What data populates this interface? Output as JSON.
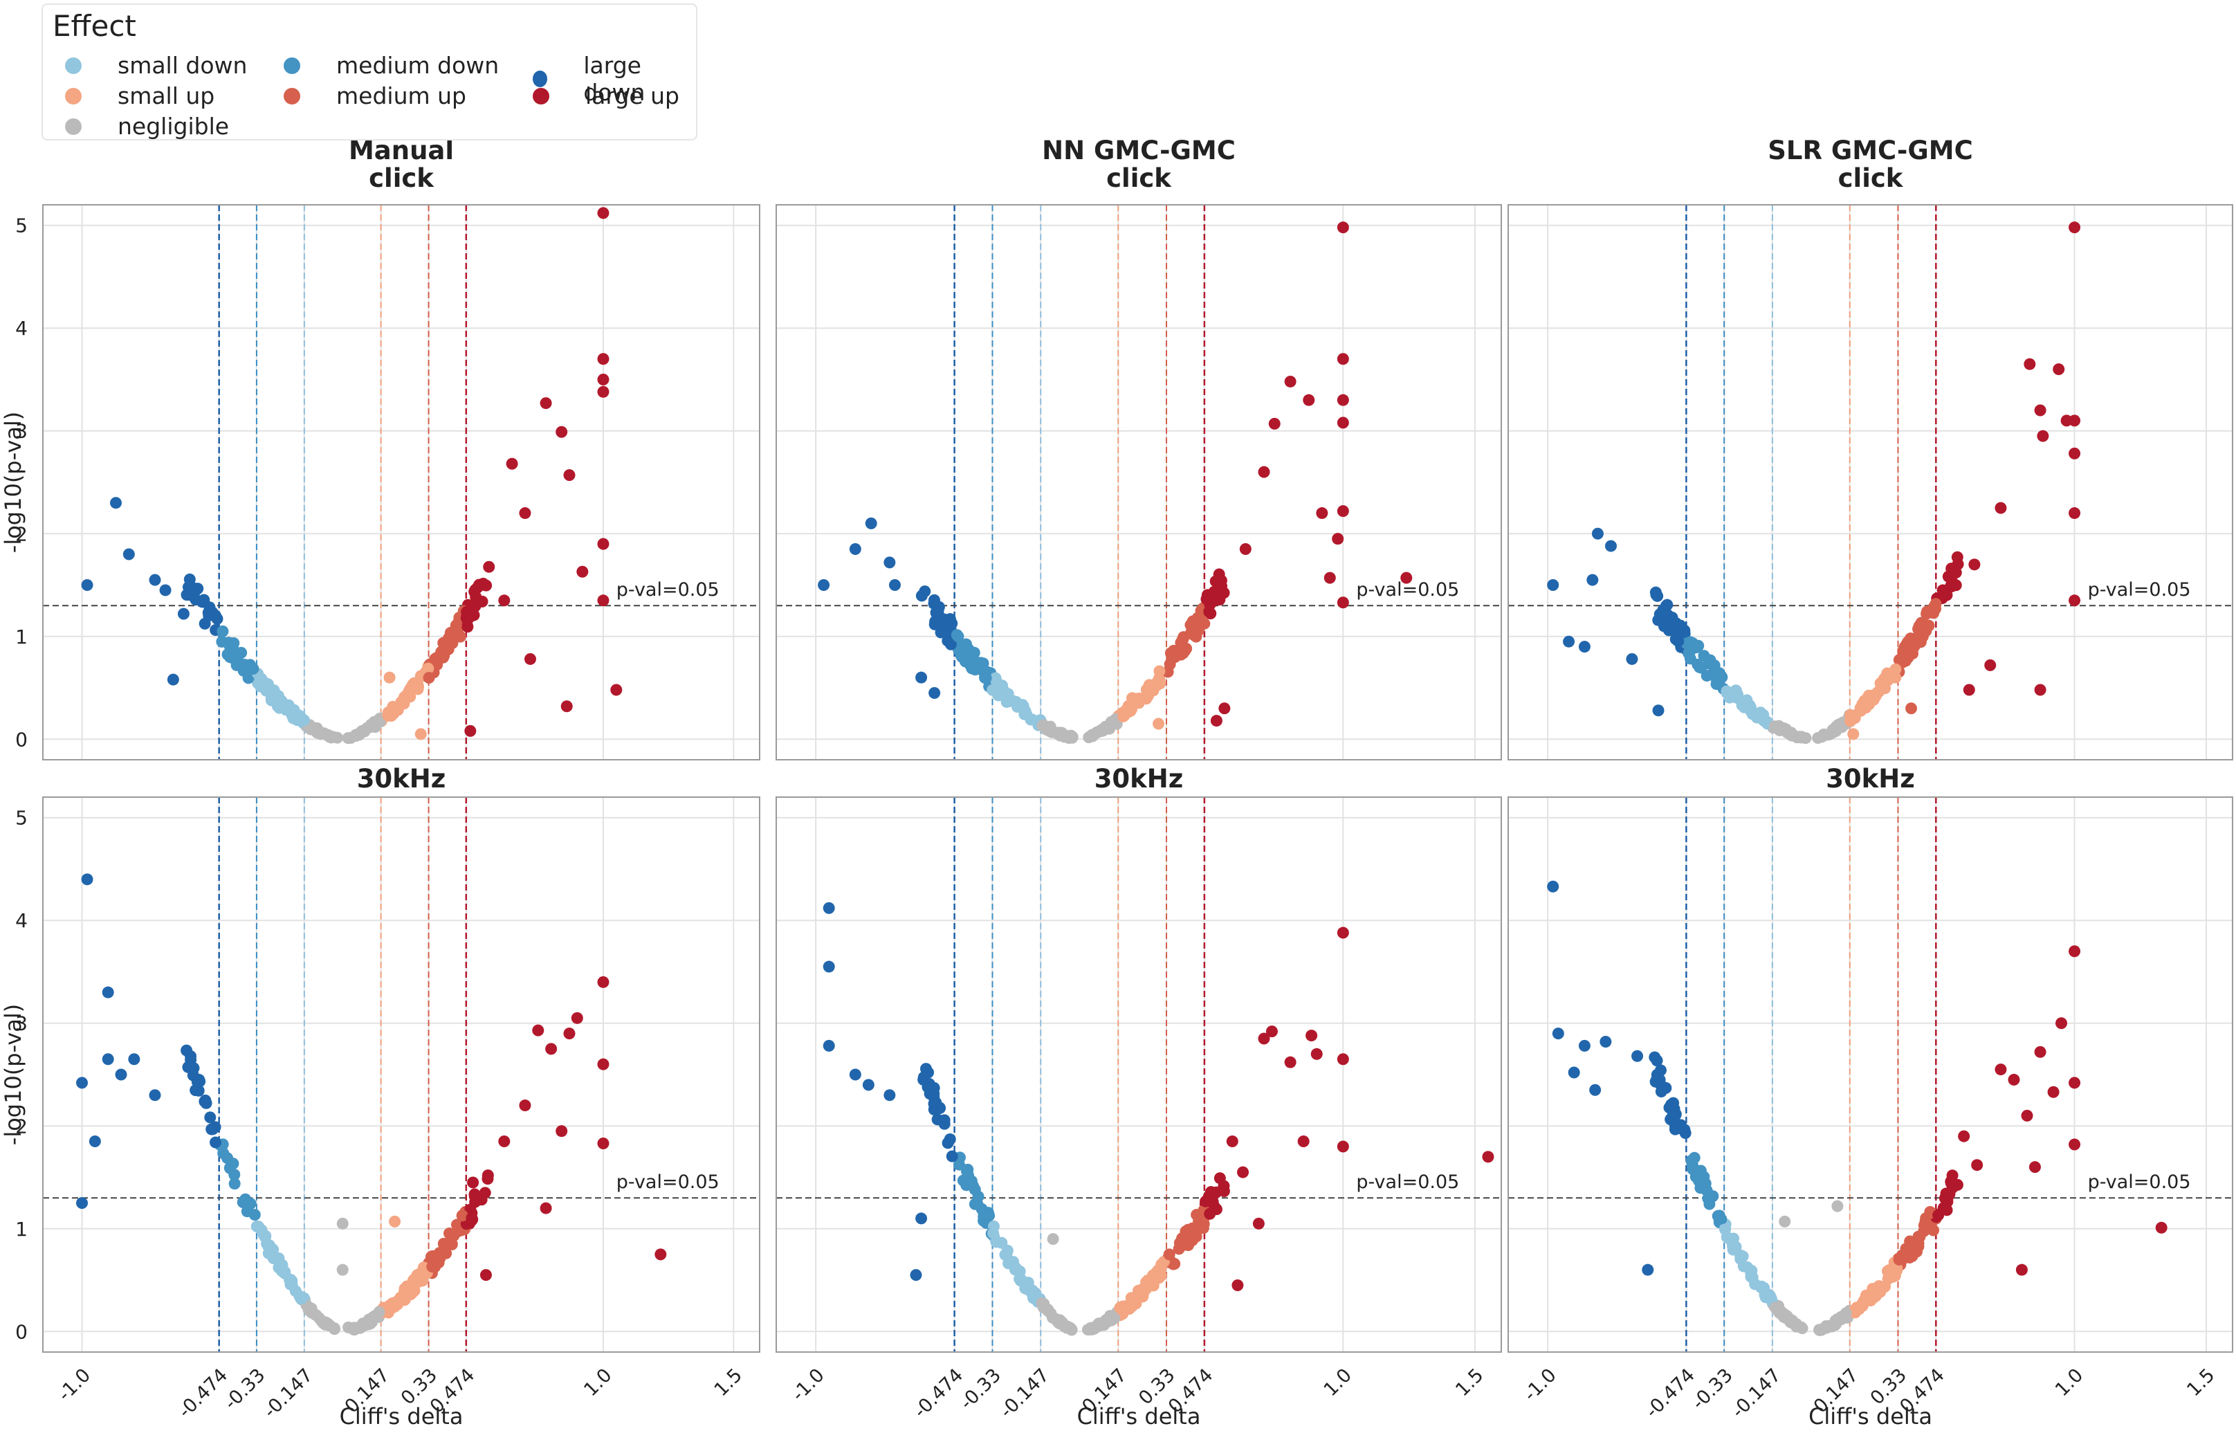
{
  "legend": {
    "title": "Effect",
    "items": [
      {
        "label": "small down",
        "color": "#92c5de"
      },
      {
        "label": "small up",
        "color": "#f4a582"
      },
      {
        "label": "negligible",
        "color": "#bababa"
      },
      {
        "label": "medium down",
        "color": "#4393c3"
      },
      {
        "label": "medium up",
        "color": "#d6604d"
      },
      {
        "label": "large down",
        "color": "#2166ac"
      },
      {
        "label": "large up",
        "color": "#b2182b"
      }
    ]
  },
  "chart_data": [
    {
      "id": "p0",
      "type": "scatter",
      "title_line1": "Manual",
      "title_line2": "click",
      "pval_label": "p-val=0.05",
      "pval_threshold": 1.3,
      "xlim": [
        -1.15,
        1.6
      ],
      "ylim": [
        -0.2,
        5.2
      ],
      "xlabel": "",
      "ylabel": "-log10(p-val)",
      "xticks": [
        "-1.0",
        "-0.474",
        "-0.33",
        "-0.147",
        "0.147",
        "0.33",
        "0.474",
        "1.0",
        "1.5"
      ],
      "yticks": [
        "0",
        "1",
        "2",
        "3",
        "4",
        "5"
      ],
      "seed": 11,
      "down_scale": 1.05,
      "up_scale": 1.2,
      "extra_points": [
        [
          -0.87,
          2.3
        ],
        [
          -0.98,
          1.5
        ],
        [
          -0.82,
          1.8
        ],
        [
          -0.72,
          1.55
        ],
        [
          -0.68,
          1.45
        ],
        [
          -0.61,
          1.22
        ],
        [
          -0.65,
          0.58
        ],
        [
          -0.46,
          1.05
        ],
        [
          0.18,
          0.6
        ],
        [
          0.3,
          0.05
        ],
        [
          0.49,
          0.08
        ],
        [
          0.62,
          1.35
        ],
        [
          0.72,
          0.78
        ],
        [
          0.78,
          3.27
        ],
        [
          0.84,
          2.99
        ],
        [
          0.87,
          2.57
        ],
        [
          0.92,
          1.63
        ],
        [
          0.86,
          0.32
        ],
        [
          1.0,
          5.12
        ],
        [
          1.0,
          3.7
        ],
        [
          1.0,
          3.5
        ],
        [
          1.0,
          3.38
        ],
        [
          1.0,
          1.9
        ],
        [
          1.0,
          1.35
        ],
        [
          1.05,
          0.48
        ],
        [
          0.65,
          2.68
        ],
        [
          0.7,
          2.2
        ]
      ]
    },
    {
      "id": "p1",
      "type": "scatter",
      "title_line1": "NN GMC-GMC",
      "title_line2": "click",
      "pval_label": "p-val=0.05",
      "pval_threshold": 1.3,
      "xlim": [
        -1.15,
        1.6
      ],
      "ylim": [
        -0.2,
        5.2
      ],
      "xlabel": "",
      "ylabel": "",
      "xticks": [
        "-1.0",
        "-0.474",
        "-0.33",
        "-0.147",
        "0.147",
        "0.33",
        "0.474",
        "1.0",
        "1.5"
      ],
      "yticks": [
        "0",
        "1",
        "2",
        "3",
        "4",
        "5"
      ],
      "seed": 23,
      "down_scale": 1.0,
      "up_scale": 1.25,
      "extra_points": [
        [
          -0.79,
          2.1
        ],
        [
          -0.85,
          1.85
        ],
        [
          -0.97,
          1.5
        ],
        [
          -0.72,
          1.72
        ],
        [
          -0.7,
          1.5
        ],
        [
          -0.6,
          0.6
        ],
        [
          -0.55,
          0.45
        ],
        [
          -0.46,
          1.0
        ],
        [
          0.2,
          0.4
        ],
        [
          0.3,
          0.15
        ],
        [
          0.55,
          0.3
        ],
        [
          0.52,
          0.18
        ],
        [
          0.63,
          1.85
        ],
        [
          0.7,
          2.6
        ],
        [
          0.74,
          3.07
        ],
        [
          0.8,
          3.48
        ],
        [
          0.87,
          3.3
        ],
        [
          0.92,
          2.2
        ],
        [
          0.95,
          1.57
        ],
        [
          0.98,
          1.95
        ],
        [
          1.0,
          4.98
        ],
        [
          1.0,
          3.7
        ],
        [
          1.0,
          3.3
        ],
        [
          1.0,
          3.08
        ],
        [
          1.0,
          2.22
        ],
        [
          1.0,
          1.33
        ],
        [
          1.24,
          1.57
        ]
      ]
    },
    {
      "id": "p2",
      "type": "scatter",
      "title_line1": "SLR GMC-GMC",
      "title_line2": "click",
      "pval_label": "p-val=0.05",
      "pval_threshold": 1.3,
      "xlim": [
        -1.15,
        1.6
      ],
      "ylim": [
        -0.2,
        5.2
      ],
      "xlabel": "",
      "ylabel": "",
      "xticks": [
        "-1.0",
        "-0.474",
        "-0.33",
        "-0.147",
        "0.147",
        "0.33",
        "0.474",
        "1.0",
        "1.5"
      ],
      "yticks": [
        "0",
        "1",
        "2",
        "3",
        "4",
        "5"
      ],
      "seed": 37,
      "down_scale": 0.95,
      "up_scale": 1.3,
      "extra_points": [
        [
          -0.81,
          2.0
        ],
        [
          -0.76,
          1.88
        ],
        [
          -0.98,
          1.5
        ],
        [
          -0.83,
          1.55
        ],
        [
          -0.92,
          0.95
        ],
        [
          -0.86,
          0.9
        ],
        [
          -0.68,
          0.78
        ],
        [
          -0.58,
          0.28
        ],
        [
          0.16,
          0.05
        ],
        [
          0.32,
          0.6
        ],
        [
          0.38,
          0.3
        ],
        [
          0.5,
          1.45
        ],
        [
          0.62,
          1.7
        ],
        [
          0.72,
          2.25
        ],
        [
          0.83,
          3.65
        ],
        [
          0.87,
          3.2
        ],
        [
          0.88,
          2.95
        ],
        [
          0.94,
          3.6
        ],
        [
          0.97,
          3.1
        ],
        [
          1.0,
          3.1
        ],
        [
          1.0,
          2.78
        ],
        [
          1.0,
          2.2
        ],
        [
          1.0,
          1.35
        ],
        [
          1.0,
          4.98
        ],
        [
          0.68,
          0.72
        ],
        [
          0.87,
          0.48
        ],
        [
          0.6,
          0.48
        ]
      ]
    },
    {
      "id": "p3",
      "type": "scatter",
      "title_line1": "30kHz",
      "title_line2": "",
      "pval_label": "p-val=0.05",
      "pval_threshold": 1.3,
      "xlim": [
        -1.15,
        1.6
      ],
      "ylim": [
        -0.2,
        5.2
      ],
      "xlabel": "Cliff's delta",
      "ylabel": "-log10(p-val)",
      "xticks": [
        "-1.0",
        "-0.474",
        "-0.33",
        "-0.147",
        "0.147",
        "0.33",
        "0.474",
        "1.0",
        "1.5"
      ],
      "yticks": [
        "0",
        "1",
        "2",
        "3",
        "4",
        "5"
      ],
      "seed": 51,
      "down_scale": 1.9,
      "up_scale": 1.1,
      "extra_points": [
        [
          -0.98,
          4.4
        ],
        [
          -0.9,
          3.3
        ],
        [
          -1.0,
          2.42
        ],
        [
          -1.0,
          1.25
        ],
        [
          -0.95,
          1.85
        ],
        [
          -0.9,
          2.65
        ],
        [
          -0.85,
          2.5
        ],
        [
          -0.8,
          2.65
        ],
        [
          -0.72,
          2.3
        ],
        [
          0.0,
          1.05
        ],
        [
          0.2,
          1.07
        ],
        [
          0.0,
          0.6
        ],
        [
          0.5,
          1.45
        ],
        [
          0.55,
          0.55
        ],
        [
          0.62,
          1.85
        ],
        [
          0.7,
          2.2
        ],
        [
          0.75,
          2.93
        ],
        [
          0.8,
          2.75
        ],
        [
          0.87,
          2.9
        ],
        [
          0.9,
          3.05
        ],
        [
          1.0,
          3.4
        ],
        [
          1.0,
          2.6
        ],
        [
          1.0,
          1.83
        ],
        [
          1.22,
          0.75
        ],
        [
          0.78,
          1.2
        ],
        [
          0.84,
          1.95
        ]
      ]
    },
    {
      "id": "p4",
      "type": "scatter",
      "title_line1": "30kHz",
      "title_line2": "",
      "pval_label": "p-val=0.05",
      "pval_threshold": 1.3,
      "xlim": [
        -1.15,
        1.6
      ],
      "ylim": [
        -0.2,
        5.2
      ],
      "xlabel": "Cliff's delta",
      "ylabel": "",
      "xticks": [
        "-1.0",
        "-0.474",
        "-0.33",
        "-0.147",
        "0.147",
        "0.33",
        "0.474",
        "1.0",
        "1.5"
      ],
      "yticks": [
        "0",
        "1",
        "2",
        "3",
        "4",
        "5"
      ],
      "seed": 67,
      "down_scale": 1.8,
      "up_scale": 1.15,
      "extra_points": [
        [
          -0.95,
          4.12
        ],
        [
          -0.95,
          3.55
        ],
        [
          -0.95,
          2.78
        ],
        [
          -0.85,
          2.5
        ],
        [
          -0.8,
          2.4
        ],
        [
          -0.72,
          2.3
        ],
        [
          -0.6,
          1.1
        ],
        [
          -0.62,
          0.55
        ],
        [
          -0.1,
          0.9
        ],
        [
          0.58,
          1.85
        ],
        [
          0.62,
          1.55
        ],
        [
          0.7,
          2.85
        ],
        [
          0.73,
          2.92
        ],
        [
          0.8,
          2.62
        ],
        [
          0.88,
          2.88
        ],
        [
          0.9,
          2.7
        ],
        [
          0.85,
          1.85
        ],
        [
          1.0,
          3.88
        ],
        [
          1.0,
          2.65
        ],
        [
          1.0,
          1.8
        ],
        [
          1.55,
          1.7
        ],
        [
          0.68,
          1.05
        ],
        [
          0.6,
          0.45
        ]
      ]
    },
    {
      "id": "p5",
      "type": "scatter",
      "title_line1": "30kHz",
      "title_line2": "",
      "pval_label": "p-val=0.05",
      "pval_threshold": 1.3,
      "xlim": [
        -1.15,
        1.6
      ],
      "ylim": [
        -0.2,
        5.2
      ],
      "xlabel": "Cliff's delta",
      "ylabel": "",
      "xticks": [
        "-1.0",
        "-0.474",
        "-0.33",
        "-0.147",
        "0.147",
        "0.33",
        "0.474",
        "1.0",
        "1.5"
      ],
      "yticks": [
        "0",
        "1",
        "2",
        "3",
        "4",
        "5"
      ],
      "seed": 79,
      "down_scale": 1.85,
      "up_scale": 1.15,
      "extra_points": [
        [
          -0.98,
          4.33
        ],
        [
          -0.96,
          2.9
        ],
        [
          -0.9,
          2.52
        ],
        [
          -0.86,
          2.78
        ],
        [
          -0.82,
          2.35
        ],
        [
          -0.78,
          2.82
        ],
        [
          -0.66,
          2.68
        ],
        [
          -0.62,
          0.6
        ],
        [
          -0.1,
          1.07
        ],
        [
          0.1,
          1.22
        ],
        [
          0.58,
          1.9
        ],
        [
          0.63,
          1.62
        ],
        [
          0.72,
          2.55
        ],
        [
          0.77,
          2.45
        ],
        [
          0.82,
          2.1
        ],
        [
          0.87,
          2.72
        ],
        [
          0.92,
          2.33
        ],
        [
          0.95,
          3.0
        ],
        [
          1.0,
          3.7
        ],
        [
          1.0,
          2.42
        ],
        [
          1.0,
          1.82
        ],
        [
          1.33,
          1.01
        ],
        [
          0.8,
          0.6
        ],
        [
          0.85,
          1.6
        ]
      ]
    }
  ]
}
